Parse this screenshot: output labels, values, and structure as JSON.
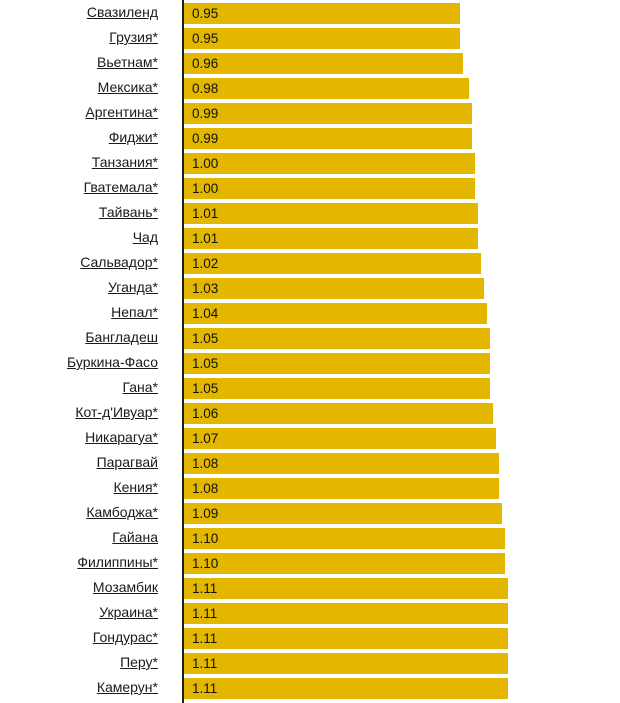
{
  "chart_data": {
    "type": "bar",
    "orientation": "horizontal",
    "categories": [
      "Свазиленд",
      "Грузия*",
      "Вьетнам*",
      "Мексика*",
      "Аргентина*",
      "Фиджи*",
      "Танзания*",
      "Гватемала*",
      "Тайвань*",
      "Чад",
      "Сальвадор*",
      "Уганда*",
      "Непал*",
      "Бангладеш",
      "Буркина-Фасо",
      "Гана*",
      "Кот-д'Ивуар*",
      "Никарагуа*",
      "Парагвай",
      "Кения*",
      "Камбоджа*",
      "Гайана",
      "Филиппины*",
      "Мозамбик",
      "Украина*",
      "Гондурас*",
      "Перу*",
      "Камерун*"
    ],
    "value_labels": [
      "0.95",
      "0.95",
      "0.96",
      "0.98",
      "0.99",
      "0.99",
      "1.00",
      "1.00",
      "1.01",
      "1.01",
      "1.02",
      "1.03",
      "1.04",
      "1.05",
      "1.05",
      "1.05",
      "1.06",
      "1.07",
      "1.08",
      "1.08",
      "1.09",
      "1.10",
      "1.10",
      "1.11",
      "1.11",
      "1.11",
      "1.11",
      "1.11"
    ],
    "values": [
      0.95,
      0.95,
      0.96,
      0.98,
      0.99,
      0.99,
      1.0,
      1.0,
      1.01,
      1.01,
      1.02,
      1.03,
      1.04,
      1.05,
      1.05,
      1.05,
      1.06,
      1.07,
      1.08,
      1.08,
      1.09,
      1.1,
      1.1,
      1.11,
      1.11,
      1.11,
      1.11,
      1.11
    ],
    "bar_color": "#e3b700",
    "title": "",
    "xlabel": "",
    "ylabel": ""
  }
}
